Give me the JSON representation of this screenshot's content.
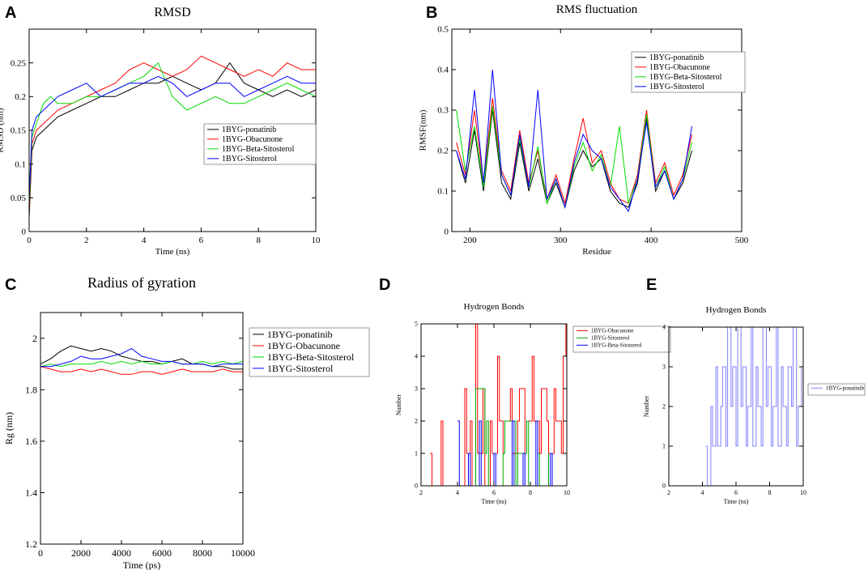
{
  "figure": {
    "panel_labels": [
      "A",
      "B",
      "C",
      "D",
      "E"
    ]
  },
  "colors": {
    "black": "#000000",
    "red": "#ff0000",
    "green": "#00dd00",
    "blue": "#0000ff",
    "light_blue": "#8080ff"
  },
  "chart_data": [
    {
      "id": "A",
      "type": "line",
      "title": "RMSD",
      "xlabel": "Time (ns)",
      "ylabel": "RMSD (nm)",
      "xlim": [
        0,
        10
      ],
      "ylim": [
        0,
        0.3
      ],
      "xticks": [
        0,
        2,
        4,
        6,
        8,
        10
      ],
      "xtick_labels": [
        "0",
        "2",
        "4",
        "6",
        "8",
        "10"
      ],
      "yticks": [
        0,
        0.05,
        0.1,
        0.15,
        0.2,
        0.25
      ],
      "ytick_labels": [
        "0",
        "0.05",
        "0.1",
        "0.15",
        "0.2",
        "0.25"
      ],
      "legend_position": "center-right",
      "series": [
        {
          "name": "1BYG-ponatinib",
          "color": "#000000",
          "x": [
            0,
            0.1,
            0.25,
            0.5,
            0.75,
            1,
            1.5,
            2,
            2.5,
            3,
            3.5,
            4,
            4.5,
            5,
            5.5,
            6,
            6.5,
            7,
            7.5,
            8,
            8.5,
            9,
            9.5,
            10
          ],
          "values": [
            0.02,
            0.12,
            0.14,
            0.15,
            0.16,
            0.17,
            0.18,
            0.19,
            0.2,
            0.2,
            0.21,
            0.22,
            0.22,
            0.23,
            0.22,
            0.21,
            0.22,
            0.25,
            0.22,
            0.21,
            0.2,
            0.21,
            0.2,
            0.21
          ]
        },
        {
          "name": "1BYG-Obacunone",
          "color": "#ff0000",
          "x": [
            0,
            0.1,
            0.25,
            0.5,
            0.75,
            1,
            1.5,
            2,
            2.5,
            3,
            3.5,
            4,
            4.5,
            5,
            5.5,
            6,
            6.5,
            7,
            7.5,
            8,
            8.5,
            9,
            9.5,
            10
          ],
          "values": [
            0.03,
            0.13,
            0.15,
            0.16,
            0.17,
            0.18,
            0.19,
            0.2,
            0.21,
            0.22,
            0.24,
            0.25,
            0.24,
            0.23,
            0.24,
            0.26,
            0.25,
            0.24,
            0.23,
            0.24,
            0.23,
            0.25,
            0.24,
            0.24
          ]
        },
        {
          "name": "1BYG-Beta-Sitosterol",
          "color": "#00dd00",
          "x": [
            0,
            0.1,
            0.25,
            0.5,
            0.75,
            1,
            1.5,
            2,
            2.5,
            3,
            3.5,
            4,
            4.5,
            5,
            5.5,
            6,
            6.5,
            7,
            7.5,
            8,
            8.5,
            9,
            9.5,
            10
          ],
          "values": [
            0.04,
            0.14,
            0.16,
            0.19,
            0.2,
            0.19,
            0.19,
            0.2,
            0.2,
            0.21,
            0.22,
            0.23,
            0.25,
            0.2,
            0.18,
            0.19,
            0.2,
            0.19,
            0.19,
            0.2,
            0.21,
            0.22,
            0.21,
            0.2
          ]
        },
        {
          "name": "1BYG-Sitosterol",
          "color": "#0000ff",
          "x": [
            0,
            0.1,
            0.25,
            0.5,
            0.75,
            1,
            1.5,
            2,
            2.5,
            3,
            3.5,
            4,
            4.5,
            5,
            5.5,
            6,
            6.5,
            7,
            7.5,
            8,
            8.5,
            9,
            9.5,
            10
          ],
          "values": [
            0.05,
            0.15,
            0.17,
            0.18,
            0.19,
            0.2,
            0.21,
            0.22,
            0.2,
            0.21,
            0.22,
            0.22,
            0.23,
            0.22,
            0.2,
            0.21,
            0.22,
            0.22,
            0.2,
            0.21,
            0.22,
            0.23,
            0.22,
            0.22
          ]
        }
      ]
    },
    {
      "id": "B",
      "type": "line",
      "title": "RMS fluctuation",
      "xlabel": "Residue",
      "ylabel": "RMSF(nm)",
      "xlim": [
        180,
        500
      ],
      "ylim": [
        0,
        0.5
      ],
      "xticks": [
        200,
        300,
        400,
        500
      ],
      "xtick_labels": [
        "200",
        "300",
        "400",
        "500"
      ],
      "yticks": [
        0,
        0.1,
        0.2,
        0.3,
        0.4,
        0.5
      ],
      "ytick_labels": [
        "0",
        "0.1",
        "0.2",
        "0.3",
        "0.4",
        "0.5"
      ],
      "legend_position": "top-right",
      "series": [
        {
          "name": "1BYG-ponatinib",
          "color": "#000000",
          "x": [
            185,
            195,
            205,
            215,
            225,
            235,
            245,
            255,
            265,
            275,
            285,
            295,
            305,
            315,
            325,
            335,
            345,
            355,
            365,
            375,
            385,
            395,
            405,
            415,
            425,
            435,
            445
          ],
          "values": [
            0.2,
            0.12,
            0.25,
            0.1,
            0.3,
            0.12,
            0.08,
            0.22,
            0.1,
            0.18,
            0.07,
            0.12,
            0.06,
            0.15,
            0.2,
            0.16,
            0.18,
            0.1,
            0.07,
            0.06,
            0.12,
            0.28,
            0.1,
            0.15,
            0.08,
            0.12,
            0.2
          ]
        },
        {
          "name": "1BYG-Obacunone",
          "color": "#ff0000",
          "x": [
            185,
            195,
            205,
            215,
            225,
            235,
            245,
            255,
            265,
            275,
            285,
            295,
            305,
            315,
            325,
            335,
            345,
            355,
            365,
            375,
            385,
            395,
            405,
            415,
            425,
            435,
            445
          ],
          "values": [
            0.22,
            0.14,
            0.3,
            0.12,
            0.33,
            0.15,
            0.1,
            0.25,
            0.12,
            0.2,
            0.08,
            0.14,
            0.07,
            0.18,
            0.28,
            0.17,
            0.2,
            0.12,
            0.08,
            0.07,
            0.14,
            0.3,
            0.12,
            0.17,
            0.09,
            0.14,
            0.24
          ]
        },
        {
          "name": "1BYG-Beta-Sitosterol",
          "color": "#00dd00",
          "x": [
            185,
            195,
            205,
            215,
            225,
            235,
            245,
            255,
            265,
            275,
            285,
            295,
            305,
            315,
            325,
            335,
            345,
            355,
            365,
            375,
            385,
            395,
            405,
            415,
            425,
            435,
            445
          ],
          "values": [
            0.3,
            0.15,
            0.26,
            0.11,
            0.31,
            0.14,
            0.09,
            0.23,
            0.11,
            0.21,
            0.07,
            0.13,
            0.06,
            0.16,
            0.22,
            0.15,
            0.19,
            0.11,
            0.26,
            0.07,
            0.13,
            0.29,
            0.11,
            0.16,
            0.08,
            0.13,
            0.22
          ]
        },
        {
          "name": "1BYG-Sitosterol",
          "color": "#0000ff",
          "x": [
            185,
            195,
            205,
            215,
            225,
            235,
            245,
            255,
            265,
            275,
            285,
            295,
            305,
            315,
            325,
            335,
            345,
            355,
            365,
            375,
            385,
            395,
            405,
            415,
            425,
            435,
            445
          ],
          "values": [
            0.2,
            0.13,
            0.35,
            0.12,
            0.4,
            0.14,
            0.09,
            0.24,
            0.11,
            0.35,
            0.08,
            0.13,
            0.06,
            0.17,
            0.24,
            0.2,
            0.18,
            0.11,
            0.08,
            0.05,
            0.13,
            0.27,
            0.11,
            0.15,
            0.08,
            0.13,
            0.26
          ]
        }
      ]
    },
    {
      "id": "C",
      "type": "line",
      "title": "Radius of gyration",
      "xlabel": "Time (ps)",
      "ylabel": "Rg (nm)",
      "xlim": [
        0,
        10000
      ],
      "ylim": [
        1.2,
        2.1
      ],
      "xticks": [
        0,
        2000,
        4000,
        6000,
        8000,
        10000
      ],
      "xtick_labels": [
        "0",
        "2000",
        "4000",
        "6000",
        "8000",
        "10000"
      ],
      "yticks": [
        1.2,
        1.4,
        1.6,
        1.8,
        2.0
      ],
      "ytick_labels": [
        "1.2",
        "1.4",
        "1.6",
        "1.8",
        "2"
      ],
      "legend_position": "outside-right",
      "series": [
        {
          "name": "1BYG-ponatinib",
          "color": "#000000",
          "x": [
            0,
            500,
            1000,
            1500,
            2000,
            2500,
            3000,
            3500,
            4000,
            4500,
            5000,
            5500,
            6000,
            6500,
            7000,
            7500,
            8000,
            8500,
            9000,
            9500,
            10000
          ],
          "values": [
            1.9,
            1.92,
            1.95,
            1.97,
            1.96,
            1.95,
            1.96,
            1.95,
            1.93,
            1.92,
            1.91,
            1.91,
            1.9,
            1.91,
            1.92,
            1.9,
            1.9,
            1.89,
            1.89,
            1.88,
            1.88
          ]
        },
        {
          "name": "1BYG-Obacunone",
          "color": "#ff0000",
          "x": [
            0,
            500,
            1000,
            1500,
            2000,
            2500,
            3000,
            3500,
            4000,
            4500,
            5000,
            5500,
            6000,
            6500,
            7000,
            7500,
            8000,
            8500,
            9000,
            9500,
            10000
          ],
          "values": [
            1.89,
            1.88,
            1.87,
            1.87,
            1.88,
            1.87,
            1.88,
            1.87,
            1.86,
            1.86,
            1.87,
            1.87,
            1.86,
            1.87,
            1.88,
            1.87,
            1.87,
            1.87,
            1.88,
            1.87,
            1.87
          ]
        },
        {
          "name": "1BYG-Beta-Sitosterol",
          "color": "#00dd00",
          "x": [
            0,
            500,
            1000,
            1500,
            2000,
            2500,
            3000,
            3500,
            4000,
            4500,
            5000,
            5500,
            6000,
            6500,
            7000,
            7500,
            8000,
            8500,
            9000,
            9500,
            10000
          ],
          "values": [
            1.89,
            1.9,
            1.89,
            1.9,
            1.9,
            1.9,
            1.91,
            1.9,
            1.91,
            1.9,
            1.91,
            1.9,
            1.9,
            1.91,
            1.9,
            1.9,
            1.91,
            1.9,
            1.91,
            1.9,
            1.91
          ]
        },
        {
          "name": "1BYG-Sitosterol",
          "color": "#0000ff",
          "x": [
            0,
            500,
            1000,
            1500,
            2000,
            2500,
            3000,
            3500,
            4000,
            4500,
            5000,
            5500,
            6000,
            6500,
            7000,
            7500,
            8000,
            8500,
            9000,
            9500,
            10000
          ],
          "values": [
            1.89,
            1.89,
            1.9,
            1.91,
            1.93,
            1.92,
            1.92,
            1.93,
            1.94,
            1.96,
            1.93,
            1.92,
            1.91,
            1.91,
            1.9,
            1.9,
            1.9,
            1.89,
            1.9,
            1.9,
            1.9
          ]
        }
      ]
    },
    {
      "id": "D",
      "type": "line",
      "title": "Hydrogen Bonds",
      "xlabel": "Time (ns)",
      "ylabel": "Number",
      "xlim": [
        2,
        10
      ],
      "ylim": [
        0,
        5
      ],
      "xticks": [
        2,
        4,
        6,
        8,
        10
      ],
      "xtick_labels": [
        "2",
        "4",
        "6",
        "8",
        "10"
      ],
      "yticks": [
        0,
        1,
        2,
        3,
        4,
        5
      ],
      "ytick_labels": [
        "0",
        "1",
        "2",
        "3",
        "4",
        "5"
      ],
      "legend_position": "outside-top-right",
      "series": [
        {
          "name": "1BYG-Obacunone",
          "color": "#ff0000",
          "x": [
            2.5,
            2.6,
            3.1,
            3.2,
            4.4,
            4.5,
            4.7,
            4.8,
            5.0,
            5.1,
            5.4,
            5.5,
            5.8,
            5.9,
            6.2,
            6.3,
            6.5,
            6.6,
            6.9,
            7.0,
            7.3,
            7.4,
            7.7,
            7.8,
            8.1,
            8.2,
            8.5,
            8.6,
            8.9,
            9.0,
            9.3,
            9.4,
            9.7,
            9.8,
            9.95
          ],
          "values": [
            1,
            0,
            2,
            0,
            3,
            1,
            2,
            0,
            5,
            1,
            3,
            0,
            2,
            1,
            4,
            2,
            1,
            2,
            3,
            1,
            2,
            3,
            1,
            2,
            4,
            2,
            1,
            3,
            2,
            1,
            3,
            2,
            1,
            4,
            5
          ]
        },
        {
          "name": "1BYG-Sitosterol",
          "color": "#00aa00",
          "x": [
            4.9,
            5.0,
            5.5,
            5.6,
            5.7,
            6.5,
            6.6,
            7.2,
            7.3,
            7.8,
            7.9,
            8.4,
            8.5,
            9.0
          ],
          "values": [
            0,
            3,
            1,
            2,
            0,
            1,
            2,
            0,
            1,
            2,
            0,
            1,
            0,
            1
          ]
        },
        {
          "name": "1BYG-Beta-Sitosterol",
          "color": "#0000ff",
          "x": [
            4.0,
            4.1,
            4.6,
            4.7,
            5.2,
            5.3,
            6.0,
            6.1,
            7.0,
            7.1,
            7.6,
            7.7,
            8.3,
            8.4,
            9.1,
            9.2
          ],
          "values": [
            2,
            0,
            1,
            0,
            2,
            0,
            1,
            0,
            2,
            0,
            1,
            0,
            2,
            0,
            1,
            0
          ]
        }
      ]
    },
    {
      "id": "E",
      "type": "line",
      "title": "Hydrogen Bonds",
      "xlabel": "Time (ns)",
      "ylabel": "Number",
      "xlim": [
        2,
        10
      ],
      "ylim": [
        0,
        4
      ],
      "xticks": [
        2,
        4,
        6,
        8,
        10
      ],
      "xtick_labels": [
        "2",
        "4",
        "6",
        "8",
        "10"
      ],
      "yticks": [
        0,
        1,
        2,
        3,
        4
      ],
      "ytick_labels": [
        "0",
        "1",
        "2",
        "3",
        "4"
      ],
      "legend_position": "outside-top-right",
      "series": [
        {
          "name": "1BYG-ponatinib",
          "color": "#8080ff",
          "x": [
            4.2,
            4.3,
            4.5,
            4.6,
            4.8,
            4.9,
            5.1,
            5.2,
            5.4,
            5.5,
            5.7,
            5.8,
            6.0,
            6.1,
            6.3,
            6.4,
            6.6,
            6.7,
            6.9,
            7.0,
            7.2,
            7.3,
            7.5,
            7.6,
            7.8,
            7.9,
            8.1,
            8.2,
            8.4,
            8.5,
            8.7,
            8.8,
            9.0,
            9.1,
            9.3,
            9.4,
            9.6,
            9.7,
            9.9,
            10.0
          ],
          "values": [
            1,
            0,
            2,
            1,
            3,
            1,
            2,
            3,
            1,
            4,
            2,
            3,
            1,
            4,
            2,
            3,
            1,
            2,
            4,
            1,
            3,
            2,
            1,
            4,
            2,
            3,
            1,
            2,
            4,
            1,
            3,
            2,
            1,
            3,
            2,
            4,
            1,
            2,
            3,
            4
          ]
        }
      ]
    }
  ]
}
